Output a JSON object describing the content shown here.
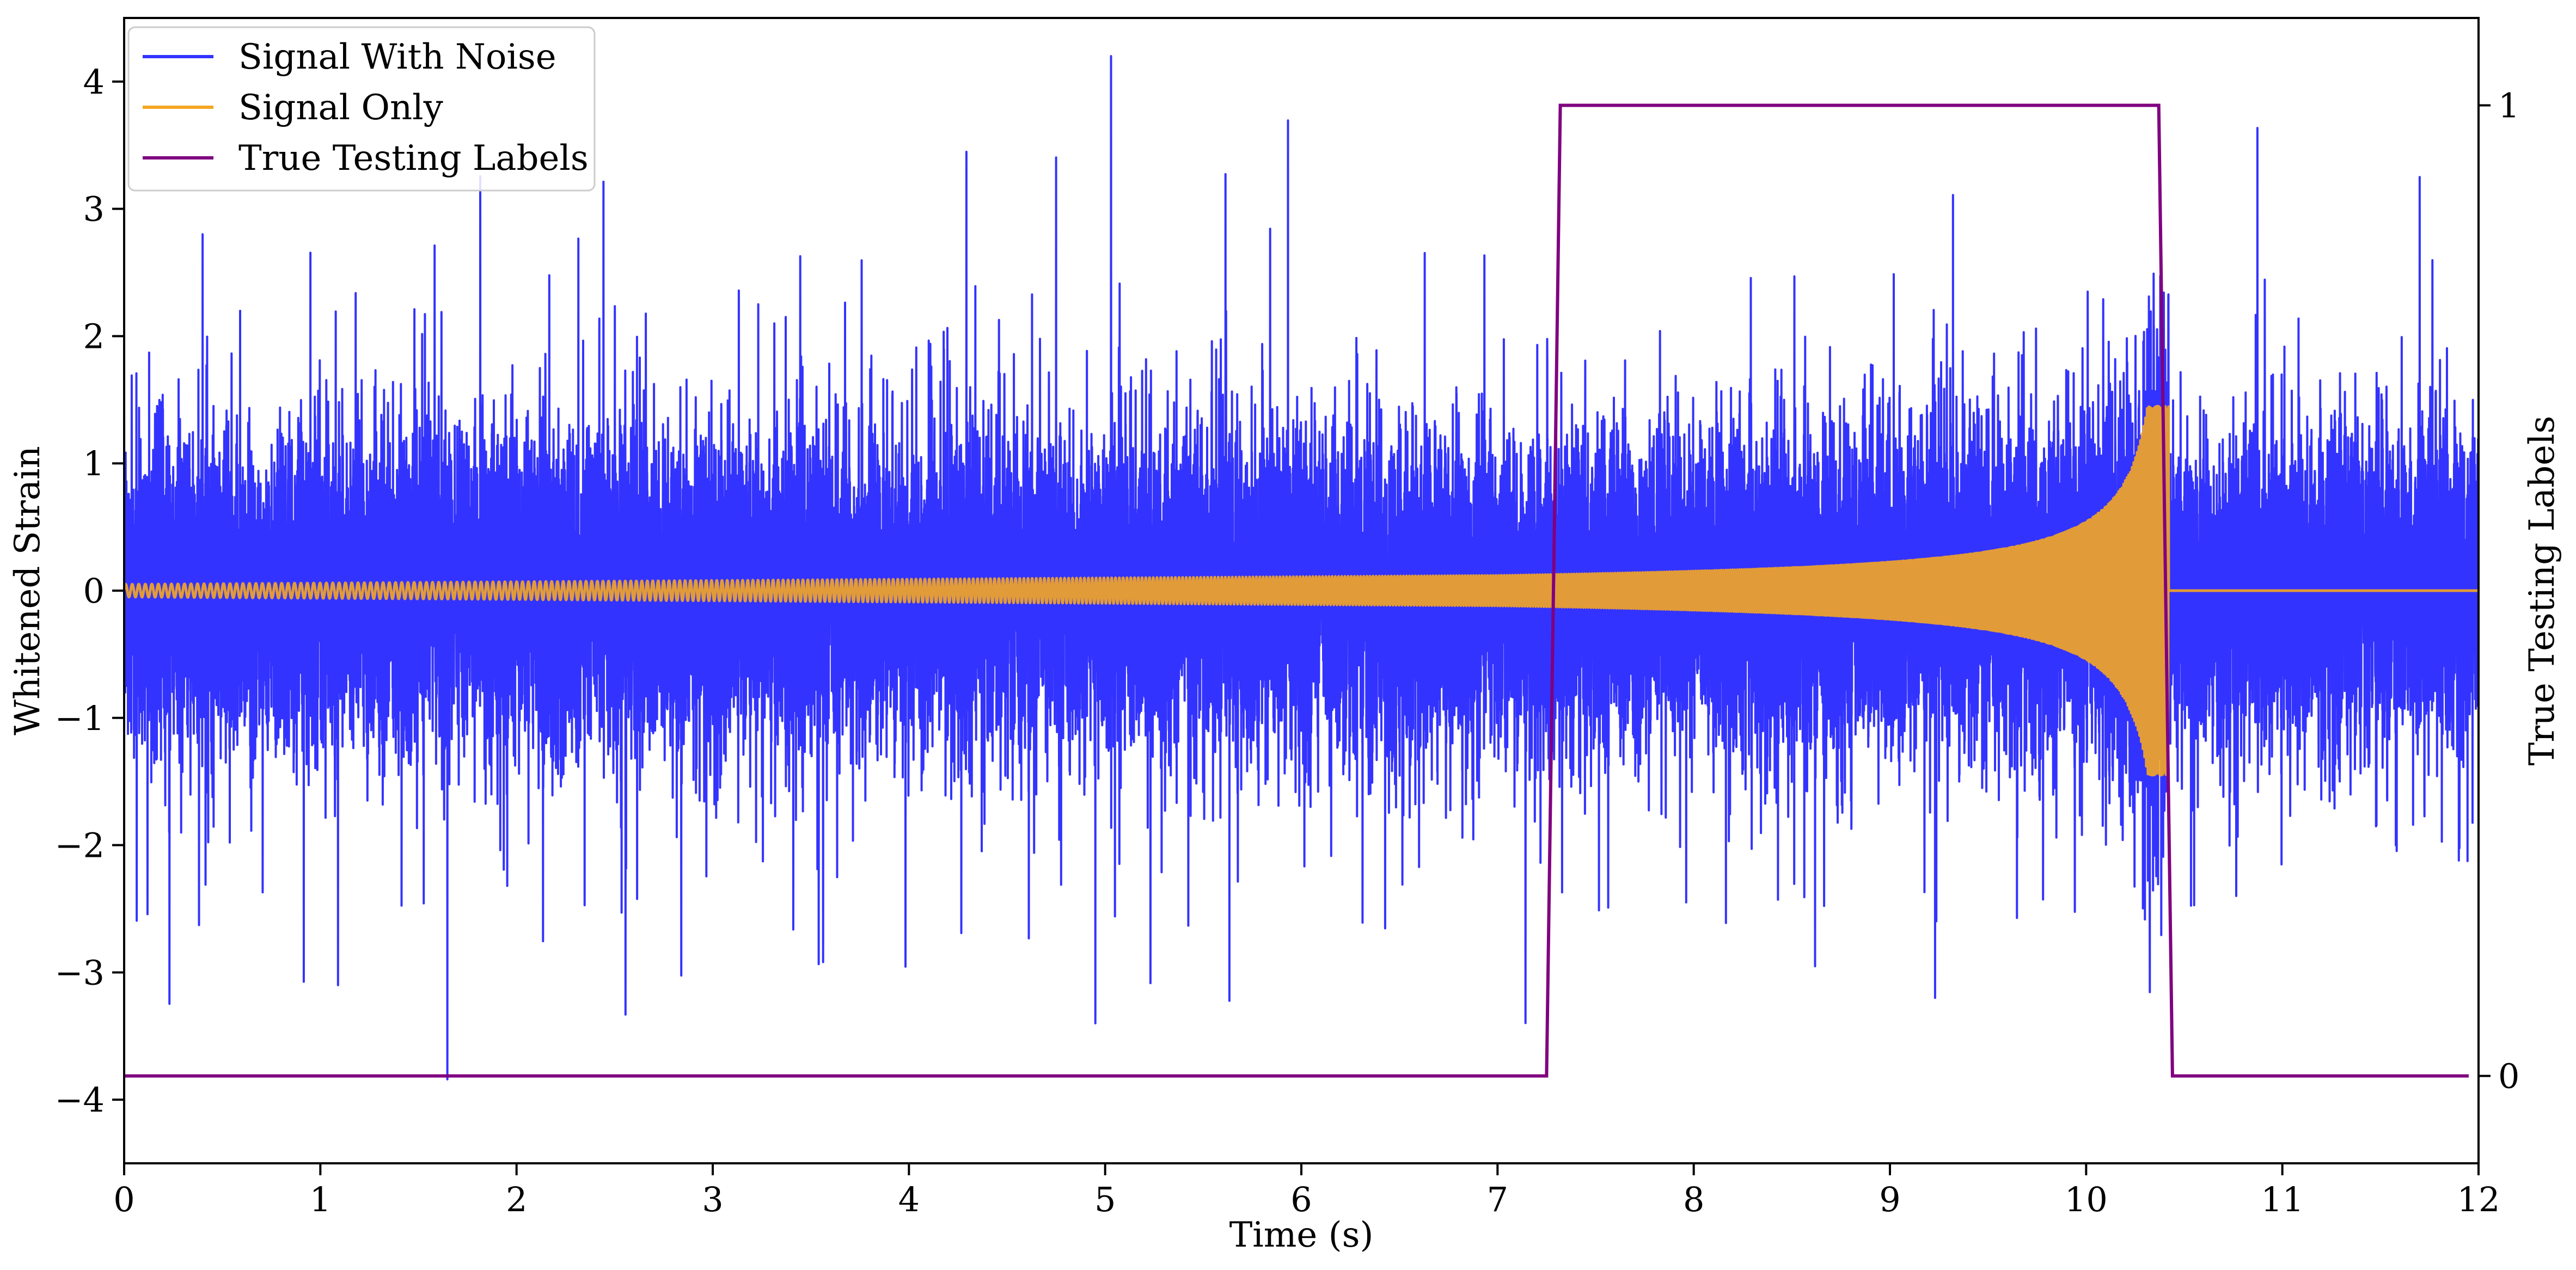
{
  "chart_data": {
    "type": "line",
    "xlabel": "Time (s)",
    "ylabel": "Whitened Strain",
    "ylabel_right": "True Testing Labels",
    "xlim": [
      0,
      12
    ],
    "ylim": [
      -4.5,
      4.5
    ],
    "ylim_right": [
      -0.09,
      1.09
    ],
    "x_ticks": [
      0,
      1,
      2,
      3,
      4,
      5,
      6,
      7,
      8,
      9,
      10,
      11,
      12
    ],
    "y_ticks": [
      -4,
      -3,
      -2,
      -1,
      0,
      1,
      2,
      3,
      4
    ],
    "y_ticks_right": [
      0,
      1
    ],
    "grid": false,
    "legend_position": "top-left",
    "series": [
      {
        "name": "Signal With Noise",
        "color": "#3333ff",
        "axis": "left",
        "description_values": {
          "noise_sigma": 0.6,
          "spikes": [
            [
              5.03,
              4.2
            ],
            [
              4.95,
              -3.4
            ],
            [
              9.23,
              -3.2
            ],
            [
              1.09,
              -3.1
            ],
            [
              11.7,
              3.25
            ],
            [
              0.4,
              2.8
            ]
          ]
        }
      },
      {
        "name": "Signal Only",
        "color": "#f5a623",
        "axis": "left",
        "chirp": {
          "start": 0.0,
          "end": 10.42,
          "amp_start": 0.05,
          "amp_at_7": 0.12,
          "amp_at_10": 0.5,
          "amp_end": 1.45,
          "freq_start": 30,
          "freq_end": 120
        }
      },
      {
        "name": "True Testing Labels",
        "color": "#800080",
        "axis": "right",
        "x": [
          0,
          7.25,
          7.32,
          10.37,
          10.44,
          11.95
        ],
        "y": [
          0,
          0,
          1,
          1,
          0,
          0
        ]
      }
    ]
  }
}
